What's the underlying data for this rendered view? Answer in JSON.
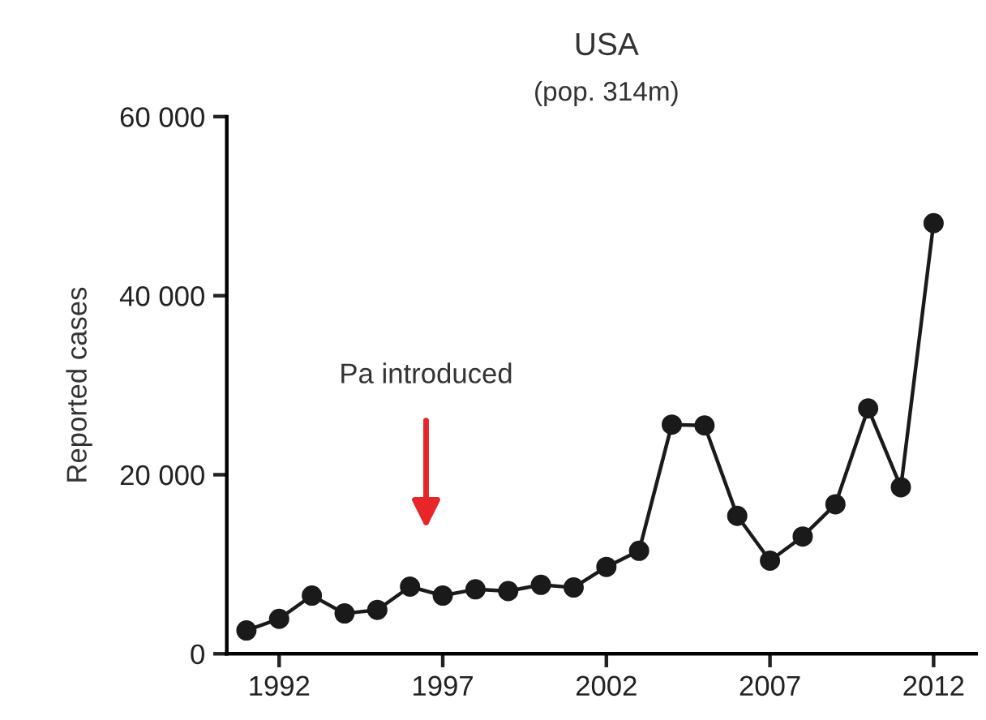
{
  "chart_data": {
    "type": "line",
    "title": "USA",
    "subtitle": "(pop. 314m)",
    "ylabel": "Reported cases",
    "x": [
      1991,
      1992,
      1993,
      1994,
      1995,
      1996,
      1997,
      1998,
      1999,
      2000,
      2001,
      2002,
      2003,
      2004,
      2005,
      2006,
      2007,
      2008,
      2009,
      2010,
      2011,
      2012
    ],
    "series": [
      {
        "color": "#1a1a1a",
        "values": [
          2600,
          3900,
          6500,
          4500,
          4900,
          7500,
          6500,
          7200,
          7000,
          7700,
          7400,
          9700,
          11500,
          25600,
          25500,
          15400,
          10400,
          13100,
          16700,
          27400,
          18600,
          48100
        ]
      }
    ],
    "xlim": [
      1990.4,
      2013.3
    ],
    "xticks": [
      1992,
      1997,
      2002,
      2007,
      2012
    ],
    "ylim": [
      0,
      60000
    ],
    "yticks": [
      0,
      {
        "value": 20000,
        "label": "20 000"
      },
      {
        "value": 40000,
        "label": "40 000"
      },
      {
        "value": 60000,
        "label": "60 000"
      }
    ],
    "annotations": [
      "Pa introduced"
    ],
    "marker": "circle",
    "line_style": "solid",
    "grid": false,
    "legend": false
  }
}
